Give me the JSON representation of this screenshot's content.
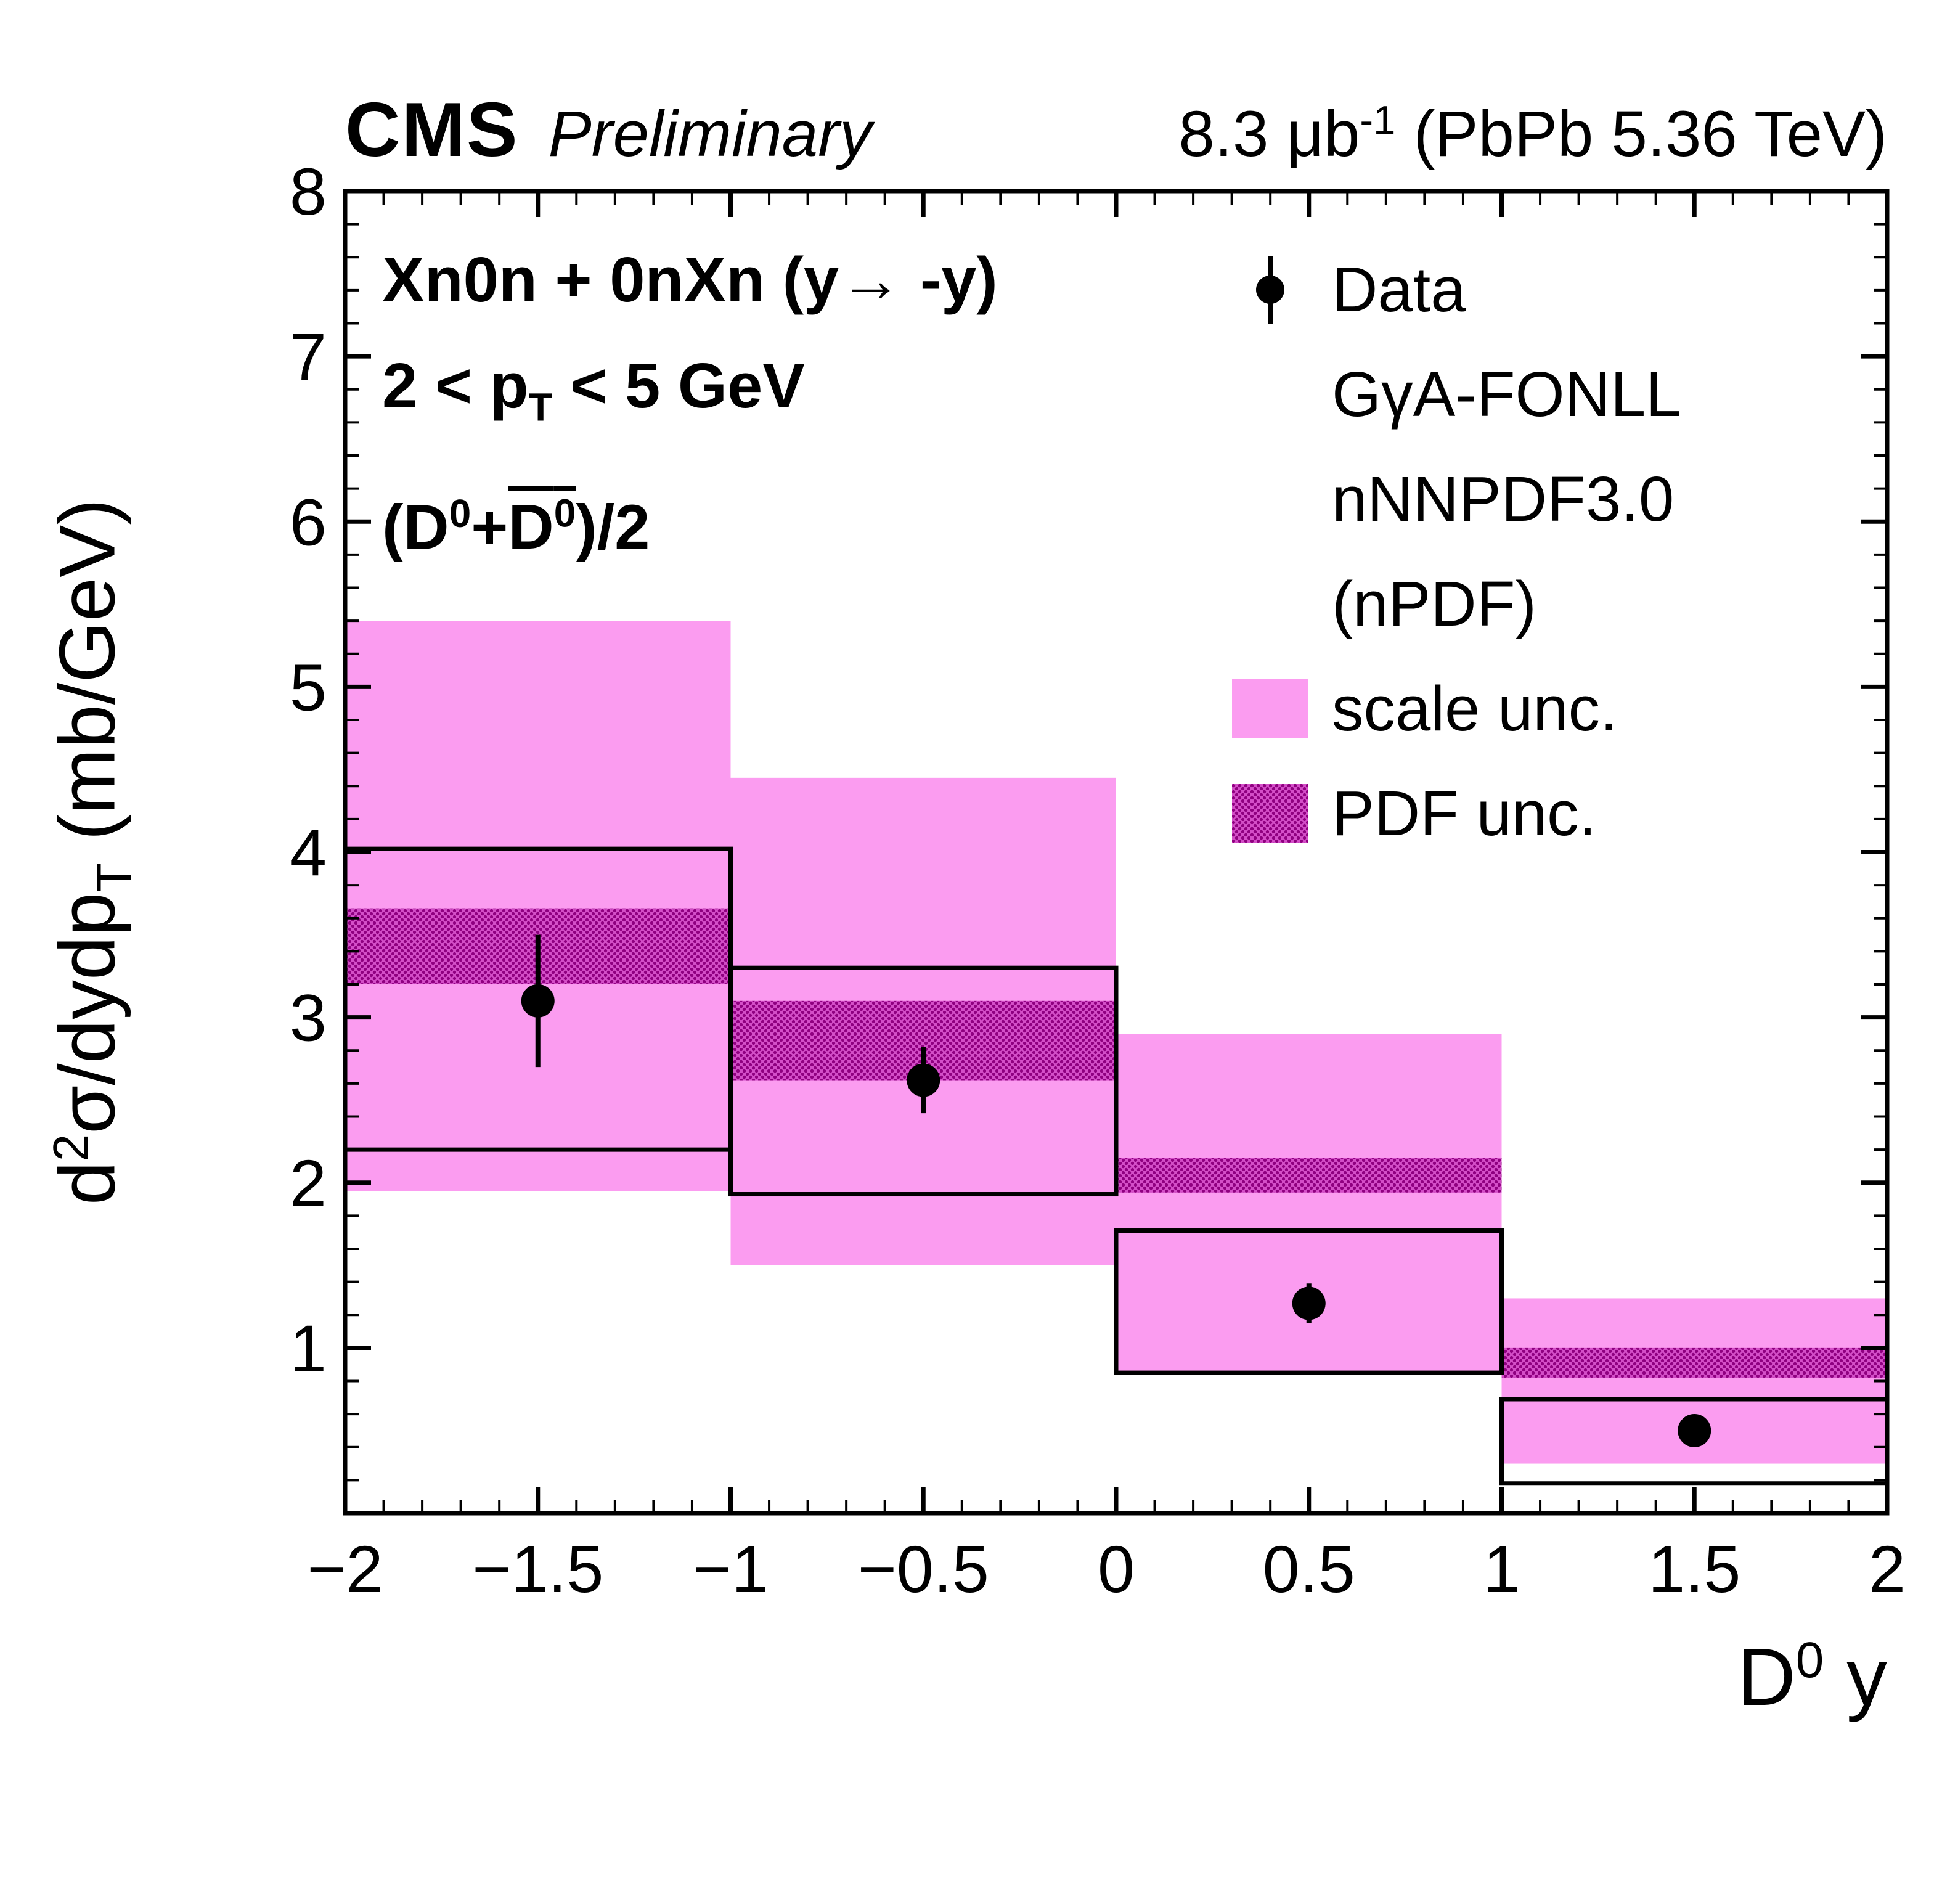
{
  "header": {
    "experiment": "CMS",
    "preliminary": "Preliminary",
    "lumi": {
      "p1": "8.3 μb",
      "sup": "-1",
      "p2": " (PbPb 5.36 TeV)"
    }
  },
  "annotations": {
    "line1": "Xn0n + 0nXn (y→ -y)",
    "line2": {
      "p1": "2 < p",
      "sub": "T",
      "p2": " < 5 GeV"
    },
    "line3": {
      "p1": "(D",
      "s1": "0",
      "plus": "+",
      "dbar": "D",
      "s2": "0",
      "p3": ")/2"
    }
  },
  "legend": {
    "data_label": "Data",
    "model_lines": [
      "GγA-FONLL",
      "nNNPDF3.0",
      "(nPDF)"
    ],
    "scale_label": "scale unc.",
    "pdf_label": "PDF unc."
  },
  "axes": {
    "x": {
      "title": {
        "p1": "D",
        "sup": "0",
        "p2": " y"
      },
      "tick_values": [
        -2,
        -1.5,
        -1,
        -0.5,
        0,
        0.5,
        1,
        1.5,
        2
      ],
      "tick_labels": [
        "−2",
        "−1.5",
        "−1",
        "−0.5",
        "0",
        "0.5",
        "1",
        "1.5",
        "2"
      ],
      "minor_step": 0.1
    },
    "y": {
      "title": {
        "p1": "d",
        "sup": "2",
        "p3": "σ/dydp",
        "sub": "T",
        "p5": " (mb/GeV)"
      },
      "tick_values": [
        1,
        2,
        3,
        4,
        5,
        6,
        7,
        8
      ],
      "tick_labels": [
        "1",
        "2",
        "3",
        "4",
        "5",
        "6",
        "7",
        "8"
      ],
      "minor_step": 0.2
    }
  },
  "chart_data": {
    "type": "scatter",
    "title": "CMS Preliminary 8.3 μb⁻¹ (PbPb 5.36 TeV)",
    "xlabel": "D⁰ y",
    "ylabel": "d²σ/dydp_T (mb/GeV)",
    "xlim": [
      -2,
      2
    ],
    "ylim": [
      0,
      8
    ],
    "grid": false,
    "legend_entries": [
      "Data",
      "GγA-FONLL nNNPDF3.0 (nPDF)",
      "scale unc.",
      "PDF unc."
    ],
    "annotations_text": [
      "Xn0n + 0nXn (y→ -y)",
      "2 < p_T < 5 GeV",
      "(D0+D0bar)/2"
    ],
    "bins": [
      {
        "x_low": -2,
        "x_high": -1,
        "data": {
          "y": 3.1,
          "stat_err": 0.4,
          "syst_low": 2.2,
          "syst_high": 4.02
        },
        "scale_unc": [
          1.95,
          5.4
        ],
        "pdf_unc": [
          3.2,
          3.66
        ]
      },
      {
        "x_low": -1,
        "x_high": 0,
        "data": {
          "y": 2.62,
          "stat_err": 0.2,
          "syst_low": 1.93,
          "syst_high": 3.3
        },
        "scale_unc": [
          1.5,
          4.45
        ],
        "pdf_unc": [
          2.62,
          3.1
        ]
      },
      {
        "x_low": 0,
        "x_high": 1,
        "data": {
          "y": 1.27,
          "stat_err": 0.12,
          "syst_low": 0.85,
          "syst_high": 1.71
        },
        "scale_unc": [
          0.85,
          2.9
        ],
        "pdf_unc": [
          1.94,
          2.15
        ]
      },
      {
        "x_low": 1,
        "x_high": 2,
        "data": {
          "y": 0.5,
          "stat_err": 0.08,
          "syst_low": 0.18,
          "syst_high": 0.69
        },
        "scale_unc": [
          0.3,
          1.3
        ],
        "pdf_unc": [
          0.82,
          1.0
        ]
      }
    ],
    "colors": {
      "scale_unc": "#fb9cf0",
      "pdf_unc_bg": "#d44fc8",
      "pdf_unc_dot": "#8f0080",
      "data": "#000000"
    }
  }
}
